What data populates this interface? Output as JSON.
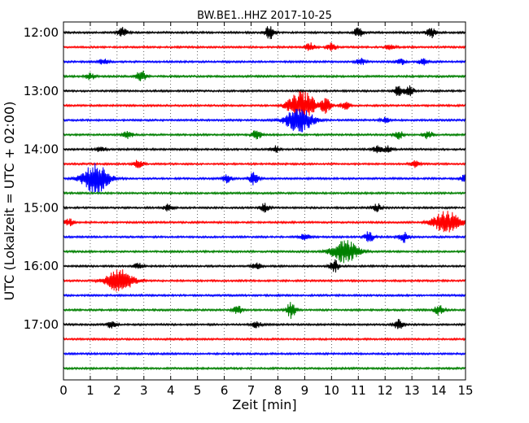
{
  "chart_data": {
    "type": "line",
    "title": "BW.BE1..HHZ 2017-10-25",
    "xlabel": "Zeit  [min]",
    "ylabel": "UTC (Lokalzeit = UTC + 02:00)",
    "xlim": [
      0,
      15
    ],
    "x_ticks": [
      "0",
      "1",
      "2",
      "3",
      "4",
      "5",
      "6",
      "7",
      "8",
      "9",
      "10",
      "11",
      "12",
      "13",
      "14",
      "15"
    ],
    "y_ticks": [
      "12:00",
      "13:00",
      "14:00",
      "15:00",
      "16:00",
      "17:00"
    ],
    "grid": "vertical dotted",
    "trace_colors": [
      "#000000",
      "#ff0000",
      "#0000ff",
      "#008000"
    ],
    "series": [
      {
        "start": "12:00",
        "events": [
          [
            2.2,
            6
          ],
          [
            7.7,
            10
          ],
          [
            11.0,
            6
          ],
          [
            13.7,
            7
          ]
        ]
      },
      {
        "start": "12:15",
        "events": [
          [
            9.2,
            5
          ],
          [
            10.0,
            5
          ],
          [
            12.2,
            4
          ]
        ]
      },
      {
        "start": "12:30",
        "events": [
          [
            1.5,
            4
          ],
          [
            11.1,
            4
          ],
          [
            12.6,
            4
          ],
          [
            13.4,
            4
          ]
        ]
      },
      {
        "start": "12:45",
        "events": [
          [
            1.0,
            4
          ],
          [
            2.9,
            8
          ]
        ]
      },
      {
        "start": "13:00",
        "events": [
          [
            12.5,
            6
          ],
          [
            12.9,
            6
          ]
        ]
      },
      {
        "start": "13:15",
        "events": [
          [
            8.9,
            18
          ],
          [
            9.8,
            10
          ],
          [
            10.5,
            5
          ]
        ]
      },
      {
        "start": "13:30",
        "events": [
          [
            8.8,
            16
          ],
          [
            12.0,
            3
          ]
        ]
      },
      {
        "start": "13:45",
        "events": [
          [
            2.4,
            5
          ],
          [
            7.2,
            6
          ],
          [
            12.5,
            5
          ],
          [
            13.6,
            5
          ]
        ]
      },
      {
        "start": "14:00",
        "events": [
          [
            1.4,
            4
          ],
          [
            7.9,
            4
          ],
          [
            11.7,
            4
          ],
          [
            12.1,
            4
          ]
        ]
      },
      {
        "start": "14:15",
        "events": [
          [
            2.8,
            5
          ],
          [
            13.1,
            4
          ]
        ]
      },
      {
        "start": "14:30",
        "events": [
          [
            1.2,
            18
          ],
          [
            6.1,
            5
          ],
          [
            7.1,
            8
          ],
          [
            15.0,
            5
          ]
        ]
      },
      {
        "start": "14:45",
        "events": []
      },
      {
        "start": "15:00",
        "events": [
          [
            3.9,
            4
          ],
          [
            7.5,
            5
          ],
          [
            11.7,
            5
          ]
        ]
      },
      {
        "start": "15:15",
        "events": [
          [
            0.2,
            5
          ],
          [
            14.3,
            14
          ]
        ]
      },
      {
        "start": "15:30",
        "events": [
          [
            9.0,
            5
          ],
          [
            11.4,
            7
          ],
          [
            12.7,
            7
          ]
        ]
      },
      {
        "start": "15:45",
        "events": [
          [
            10.5,
            14
          ]
        ]
      },
      {
        "start": "16:00",
        "events": [
          [
            2.8,
            4
          ],
          [
            7.2,
            4
          ],
          [
            10.1,
            8
          ]
        ]
      },
      {
        "start": "16:15",
        "events": [
          [
            2.1,
            14
          ]
        ]
      },
      {
        "start": "16:30",
        "events": []
      },
      {
        "start": "16:45",
        "events": [
          [
            6.5,
            5
          ],
          [
            8.5,
            10
          ],
          [
            14.0,
            6
          ]
        ]
      },
      {
        "start": "17:00",
        "events": [
          [
            1.8,
            5
          ],
          [
            7.2,
            4
          ],
          [
            12.5,
            6
          ]
        ]
      },
      {
        "start": "17:15",
        "events": []
      },
      {
        "start": "17:30",
        "events": []
      },
      {
        "start": "17:45",
        "events": []
      }
    ]
  }
}
